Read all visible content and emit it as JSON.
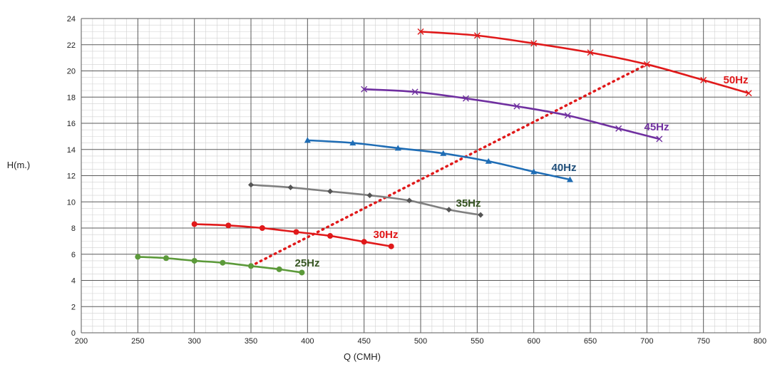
{
  "chart_data": {
    "type": "line",
    "title": "",
    "xlabel": "Q (CMH)",
    "ylabel": "H(m.)",
    "xlim": [
      200,
      800
    ],
    "ylim": [
      0,
      24
    ],
    "x_ticks": [
      200,
      250,
      300,
      350,
      400,
      450,
      500,
      550,
      600,
      650,
      700,
      750,
      800
    ],
    "y_ticks": [
      0,
      2,
      4,
      6,
      8,
      10,
      12,
      14,
      16,
      18,
      20,
      22,
      24
    ],
    "grid": true,
    "legend": "inline",
    "series": [
      {
        "name": "50Hz",
        "color": "#e0191a",
        "marker": "x",
        "x": [
          500,
          550,
          600,
          650,
          700,
          750,
          790
        ],
        "y": [
          23.0,
          22.7,
          22.1,
          21.4,
          20.5,
          19.3,
          18.3
        ]
      },
      {
        "name": "45Hz",
        "color": "#7030a0",
        "marker": "x",
        "x": [
          450,
          495,
          540,
          585,
          630,
          675,
          711
        ],
        "y": [
          18.6,
          18.4,
          17.9,
          17.3,
          16.6,
          15.6,
          14.8
        ]
      },
      {
        "name": "40Hz",
        "color": "#1f6db5",
        "marker": "triangle",
        "x": [
          400,
          440,
          480,
          520,
          560,
          600,
          632
        ],
        "y": [
          14.7,
          14.5,
          14.1,
          13.7,
          13.1,
          12.3,
          11.7
        ]
      },
      {
        "name": "35Hz",
        "color": "#7f7f7f",
        "marker": "diamond",
        "x": [
          350,
          385,
          420,
          455,
          490,
          525,
          553
        ],
        "y": [
          11.3,
          11.1,
          10.8,
          10.5,
          10.1,
          9.4,
          9.0
        ]
      },
      {
        "name": "30Hz",
        "color": "#e0191a",
        "marker": "circle",
        "x": [
          300,
          330,
          360,
          390,
          420,
          450,
          474
        ],
        "y": [
          8.3,
          8.2,
          8.0,
          7.7,
          7.4,
          6.95,
          6.6
        ]
      },
      {
        "name": "25Hz",
        "color": "#5c9a3a",
        "marker": "circle",
        "x": [
          250,
          275,
          300,
          325,
          350,
          375,
          395
        ],
        "y": [
          5.8,
          5.7,
          5.5,
          5.35,
          5.1,
          4.85,
          4.6
        ]
      }
    ],
    "operating_line": {
      "color": "#e0191a",
      "style": "dotted",
      "x": [
        350,
        700
      ],
      "y": [
        5.1,
        20.5
      ]
    },
    "series_labels": [
      {
        "text": "50Hz",
        "color": "#e0191a"
      },
      {
        "text": "45Hz",
        "color": "#7030a0"
      },
      {
        "text": "40Hz",
        "color": "#1f4e79"
      },
      {
        "text": "35Hz",
        "color": "#375623"
      },
      {
        "text": "30Hz",
        "color": "#e0191a"
      },
      {
        "text": "25Hz",
        "color": "#375623"
      }
    ]
  }
}
